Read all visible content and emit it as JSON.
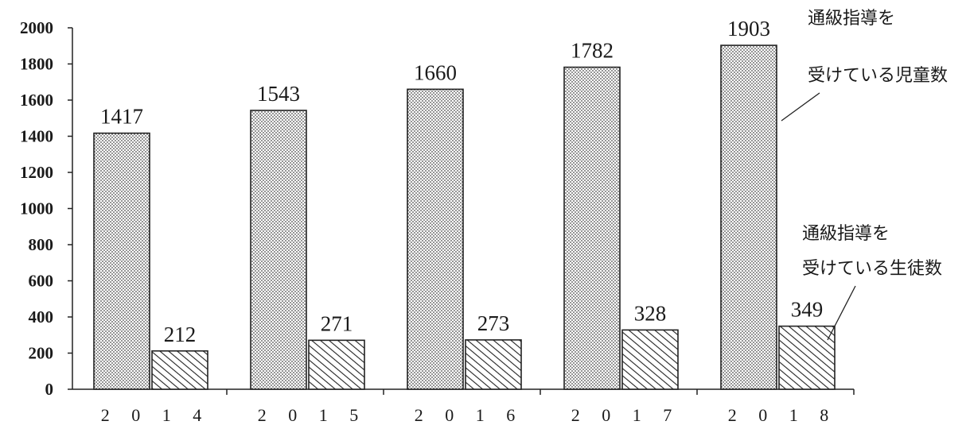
{
  "chart_data": {
    "type": "bar",
    "categories": [
      "2014",
      "2015",
      "2016",
      "2017",
      "2018"
    ],
    "category_labels": [
      "2 0 1 4",
      "2 0 1 5",
      "2 0 1 6",
      "2 0 1 7",
      "2 0 1 8"
    ],
    "series": [
      {
        "name": "通級指導を受けている児童数",
        "legend_lines": [
          "通級指導を",
          "受けている児童数"
        ],
        "values": [
          1417,
          1543,
          1660,
          1782,
          1903
        ],
        "pattern": "dotted",
        "color": "#bdbdbd"
      },
      {
        "name": "通級指導を受けている生徒数",
        "legend_lines": [
          "通級指導を",
          "受けている生徒数"
        ],
        "values": [
          212,
          271,
          273,
          328,
          349
        ],
        "pattern": "hatched",
        "color": "#555555"
      }
    ],
    "yticks": [
      0,
      200,
      400,
      600,
      800,
      1000,
      1200,
      1400,
      1600,
      1800,
      2000
    ],
    "ylim": [
      0,
      2000
    ],
    "title": "",
    "xlabel": "",
    "ylabel": "",
    "grid": false,
    "legend_placement": "right, with leader lines to the 2018 bars"
  }
}
